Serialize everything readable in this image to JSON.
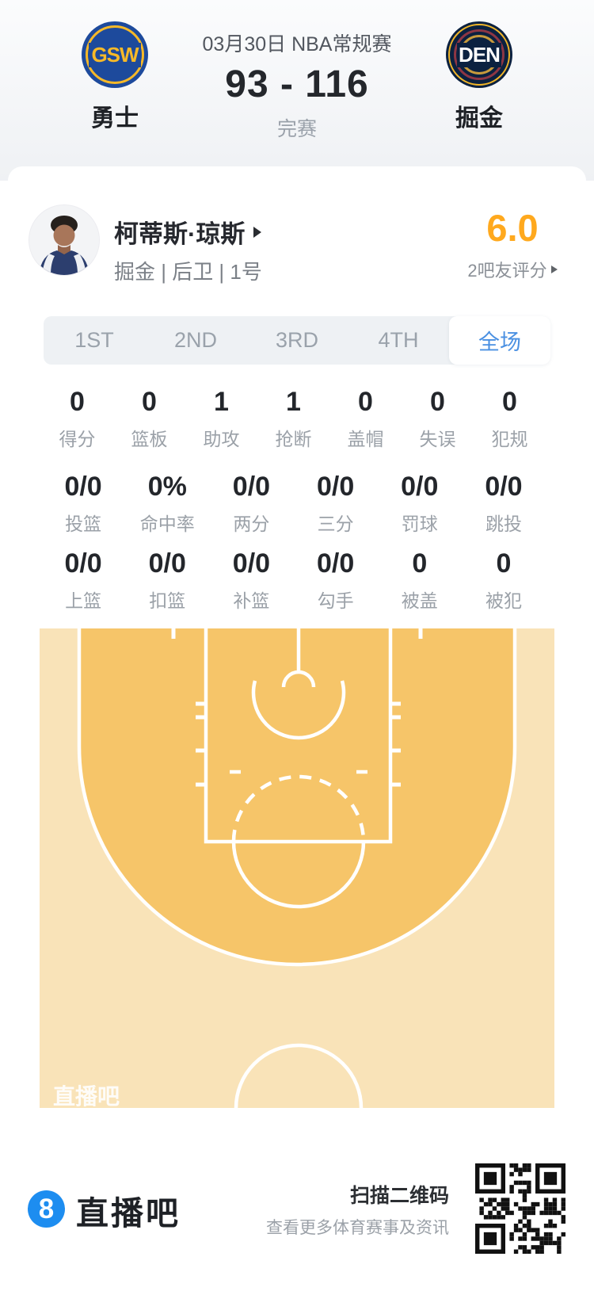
{
  "header": {
    "date": "03月30日 NBA常规赛",
    "score": "93 - 116",
    "status": "完赛",
    "teams": {
      "home": {
        "name": "勇士",
        "logo": "GSW"
      },
      "away": {
        "name": "掘金",
        "logo": "DEN"
      }
    }
  },
  "player": {
    "name": "柯蒂斯·琼斯",
    "meta": "掘金 | 后卫 | 1号",
    "rating": "6.0",
    "rating_caption": "2吧友评分"
  },
  "tabs": [
    {
      "label": "1ST",
      "active": false
    },
    {
      "label": "2ND",
      "active": false
    },
    {
      "label": "3RD",
      "active": false
    },
    {
      "label": "4TH",
      "active": false
    },
    {
      "label": "全场",
      "active": true
    }
  ],
  "stats": {
    "row1": [
      {
        "value": "0",
        "label": "得分"
      },
      {
        "value": "0",
        "label": "篮板"
      },
      {
        "value": "1",
        "label": "助攻"
      },
      {
        "value": "1",
        "label": "抢断"
      },
      {
        "value": "0",
        "label": "盖帽"
      },
      {
        "value": "0",
        "label": "失误"
      },
      {
        "value": "0",
        "label": "犯规"
      }
    ],
    "row2": [
      {
        "value": "0/0",
        "label": "投篮"
      },
      {
        "value": "0%",
        "label": "命中率"
      },
      {
        "value": "0/0",
        "label": "两分"
      },
      {
        "value": "0/0",
        "label": "三分"
      },
      {
        "value": "0/0",
        "label": "罚球"
      },
      {
        "value": "0/0",
        "label": "跳投"
      }
    ],
    "row3": [
      {
        "value": "0/0",
        "label": "上篮"
      },
      {
        "value": "0/0",
        "label": "扣篮"
      },
      {
        "value": "0/0",
        "label": "补篮"
      },
      {
        "value": "0/0",
        "label": "勾手"
      },
      {
        "value": "0",
        "label": "被盖"
      },
      {
        "value": "0",
        "label": "被犯"
      }
    ]
  },
  "court": {
    "watermark": "直播吧"
  },
  "footer": {
    "logo": "8",
    "brand": "直播吧",
    "scan_title": "扫描二维码",
    "scan_caption": "查看更多体育赛事及资讯"
  },
  "colors": {
    "accent_blue": "#4a90e2",
    "rating_orange": "#ffa91e",
    "court_inner": "#f6c569",
    "court_outer": "#f9e3b8",
    "brand_blue": "#1d8df0"
  }
}
